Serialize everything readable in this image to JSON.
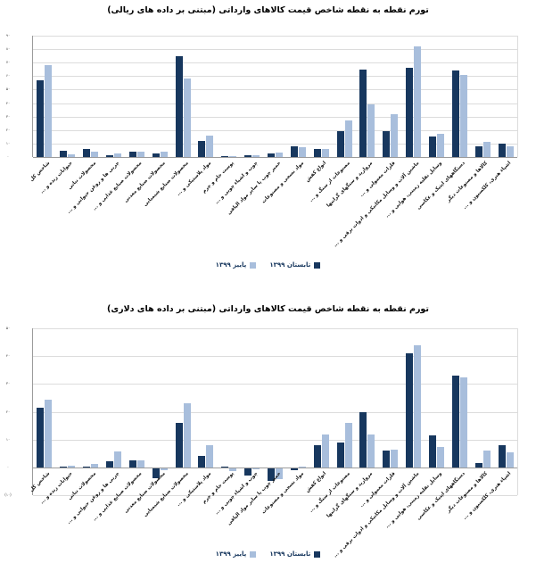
{
  "page": {
    "background": "#ffffff"
  },
  "colors": {
    "dark_series": "#17375e",
    "light_series": "#a8bedc",
    "gridline": "#dcdcdc",
    "axis": "#9b9b9b",
    "title_text": "#000000"
  },
  "chart_data": [
    {
      "type": "bar",
      "title": "تورم نقطه به نقطه شاخص قیمت کالاهای وارداتی (مبتنی بر داده های ریالی)",
      "categories": [
        "شاخص کل",
        "حیوانات زنده و ...",
        "محصولات نباتی",
        "چربی ها و روغن حیوانی و ...",
        "محصولات صنایع غذایی و ...",
        "محصولات صنایع معدنی",
        "محصولات صنایع شیمیایی",
        "مواد پلاستیکی و ...",
        "پوست خام و چرم",
        "چوب و اشیاء چوبی و ...",
        "خمیر چوب یا سایر مواد الیافی",
        "مواد نسجی و مصنوعات",
        "انواع کفش",
        "مصنوعات از سنگ و ...",
        "مروارید و سنگهای گرانبها",
        "فلزات معمولی و ...",
        "ماشین آلات و وسایل مکانیکی و ادوات برقی و ...",
        "وسایل نقلیه زمینی، هوایی و ...",
        "دستگاههای اپتیک و عکاسی",
        "کالاها و مصنوعات دیگر",
        "اشیاء هنری، کلکسیون و ..."
      ],
      "series": [
        {
          "name": "تابستان ۱۳۹۹",
          "color": "#17375e",
          "values": [
            57,
            4.5,
            5.7,
            1,
            4,
            2.6,
            75,
            12,
            0.5,
            1,
            2.5,
            7.7,
            6.2,
            19,
            65,
            19,
            66,
            15,
            64.5,
            8,
            9.7
          ]
        },
        {
          "name": "پاییز ۱۳۹۹",
          "color": "#a8bedc",
          "values": [
            68,
            2,
            4.2,
            2.6,
            4,
            4.2,
            58,
            16,
            0.5,
            1.5,
            3.5,
            7.3,
            6,
            27,
            39,
            32,
            82,
            17.5,
            61,
            11,
            8
          ]
        }
      ],
      "legend": [
        {
          "label": "پاییز ۱۳۹۹",
          "color": "#a8bedc"
        },
        {
          "label": "تابستان ۱۳۹۹",
          "color": "#17375e"
        }
      ],
      "legend_position": "bottom",
      "grid": true,
      "ylim": [
        0,
        90
      ],
      "ytick_step": 10,
      "ytick_labels": [
        "۰",
        "۱۰",
        "۲۰",
        "۳۰",
        "۴۰",
        "۵۰",
        "۶۰",
        "۷۰",
        "۸۰",
        "۹۰"
      ]
    },
    {
      "type": "bar",
      "title": "تورم نقطه به نقطه شاخص قیمت کالاهای وارداتی (مبتنی بر داده های دلاری)",
      "categories": [
        "شاخص کل",
        "حیوانات زنده و ...",
        "محصولات نباتی",
        "چربی ها و روغن حیوانی و ...",
        "محصولات صنایع غذایی و ...",
        "محصولات صنایع معدنی",
        "محصولات صنایع شیمیایی",
        "مواد پلاستیکی و ...",
        "پوست خام و چرم",
        "چوب و اشیاء چوبی و ...",
        "خمیر چوب یا سایر مواد الیافی",
        "مواد نسجی و مصنوعات",
        "انواع کفش",
        "مصنوعات از سنگ و ...",
        "مروارید و سنگهای گرانبها",
        "فلزات معمولی و ...",
        "ماشین آلات و وسایل مکانیکی و ادوات برقی و ...",
        "وسایل نقلیه زمینی، هوایی و ...",
        "دستگاههای اپتیک و عکاسی",
        "کالاها و مصنوعات دیگر",
        "اشیاء هنری، کلکسیون و ..."
      ],
      "series": [
        {
          "name": "تابستان ۱۳۹۹",
          "color": "#17375e",
          "values": [
            21.5,
            0.2,
            0.4,
            2.3,
            2.6,
            -3.4,
            16,
            4.3,
            0.3,
            -2.5,
            -4.6,
            -0.6,
            8,
            9,
            20,
            6,
            41,
            11.5,
            33,
            1.5,
            8
          ]
        },
        {
          "name": "پاییز ۱۳۹۹",
          "color": "#a8bedc",
          "values": [
            24.5,
            0.8,
            1.3,
            5.8,
            2.6,
            -0.5,
            23,
            8,
            -0.9,
            -0.4,
            -3.7,
            0.2,
            12,
            16,
            12,
            6.3,
            44,
            7.5,
            32.5,
            6,
            5.5
          ]
        }
      ],
      "legend": [
        {
          "label": "پاییز ۱۳۹۹",
          "color": "#a8bedc"
        },
        {
          "label": "تابستان ۱۳۹۹",
          "color": "#17375e"
        }
      ],
      "legend_position": "bottom",
      "grid": true,
      "ylim": [
        -10,
        50
      ],
      "ytick_step": 10,
      "ytick_labels": [
        "(۱۰)",
        "۰",
        "۱۰",
        "۲۰",
        "۳۰",
        "۴۰",
        "۵۰"
      ]
    }
  ]
}
